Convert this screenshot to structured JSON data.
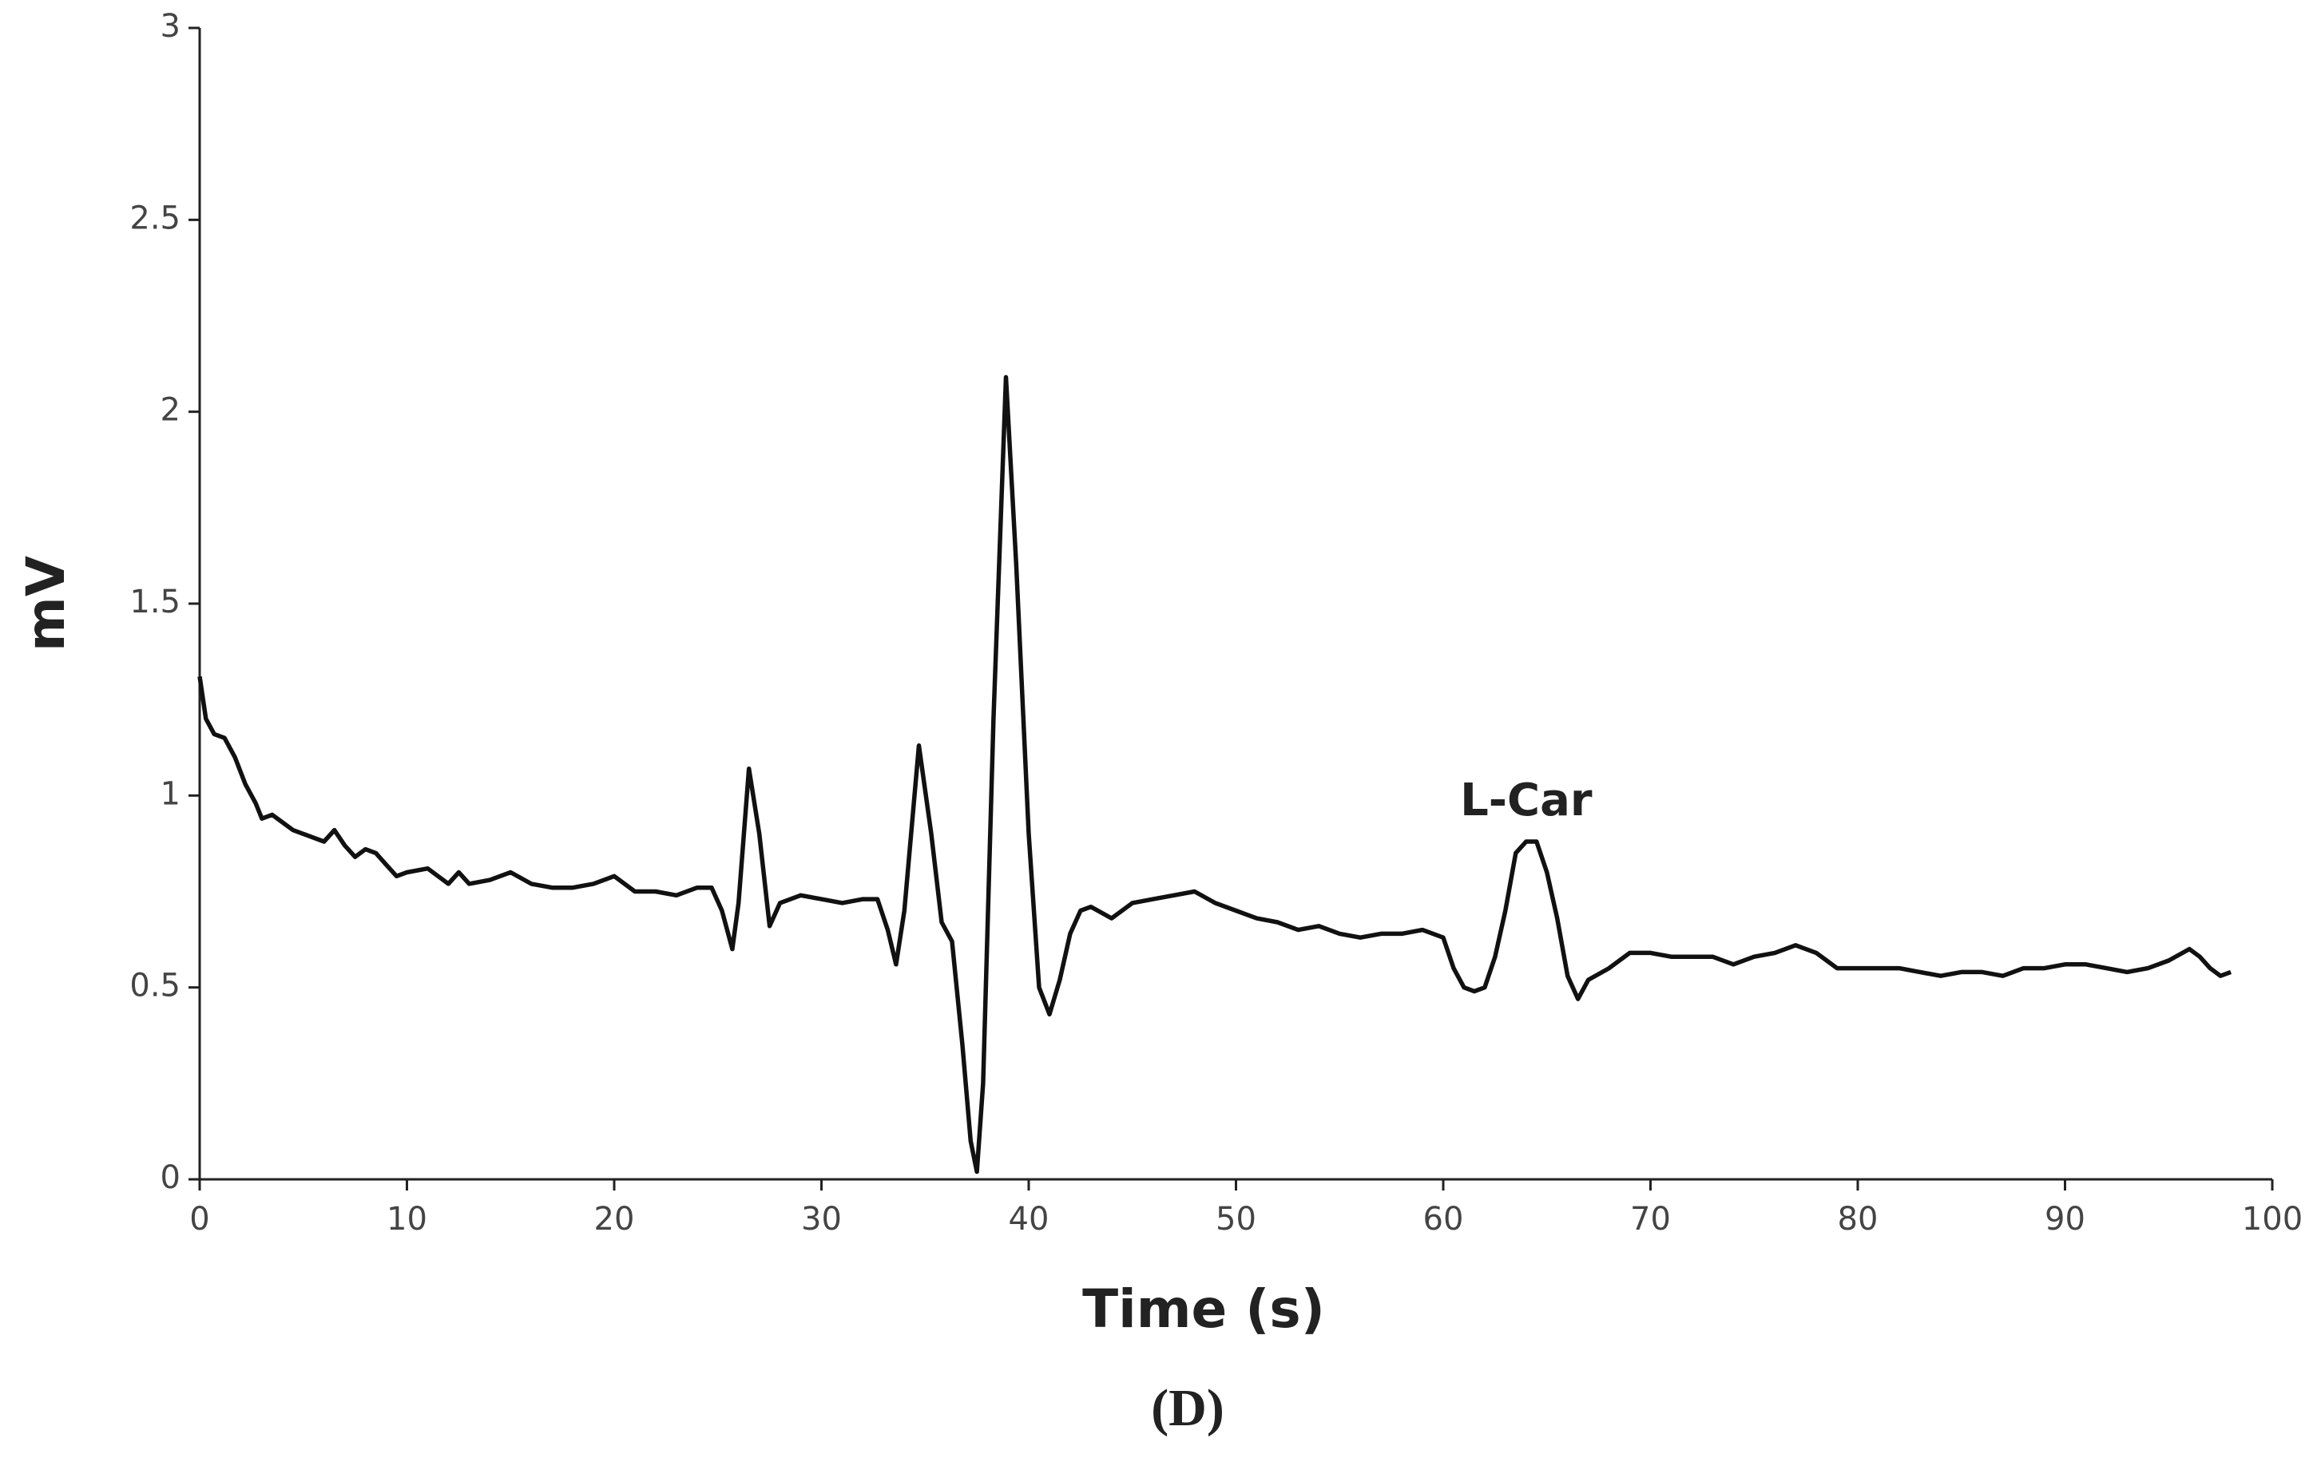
{
  "chart_data": {
    "type": "line",
    "caption": "(D)",
    "x_label": "Time (s)",
    "y_label": "mV",
    "annotations": [
      {
        "text": "L-Car",
        "x": 64,
        "y": 0.98
      }
    ],
    "xlim": [
      0,
      100
    ],
    "xticks": [
      0,
      10,
      20,
      30,
      40,
      50,
      60,
      70,
      80,
      90,
      100
    ],
    "ylim": [
      0,
      3
    ],
    "yticks": [
      0,
      0.5,
      1,
      1.5,
      2,
      2.5,
      3
    ],
    "grid": false,
    "series": [
      {
        "name": null,
        "color": "#111111",
        "x": [
          0,
          0.3,
          0.7,
          1.2,
          1.7,
          2.2,
          2.7,
          3,
          3.5,
          4,
          4.5,
          5,
          5.5,
          6,
          6.5,
          7,
          7.5,
          8,
          8.5,
          9,
          9.5,
          10,
          11,
          12,
          12.5,
          13,
          14,
          15,
          16,
          17,
          18,
          19,
          20,
          21,
          22,
          23,
          24,
          24.7,
          25.2,
          25.7,
          26,
          26.5,
          27,
          27.5,
          28,
          29,
          30,
          31,
          32,
          32.7,
          33.2,
          33.6,
          34,
          34.7,
          35.3,
          35.8,
          36.3,
          36.8,
          37.2,
          37.5,
          37.8,
          38.3,
          38.9,
          39.4,
          40,
          40.5,
          41,
          41.5,
          42,
          42.5,
          43,
          44,
          45,
          46,
          47,
          48,
          49,
          50,
          51,
          52,
          53,
          54,
          55,
          56,
          57,
          58,
          59,
          60,
          60.5,
          61,
          61.5,
          62,
          62.5,
          63,
          63.5,
          64,
          64.5,
          65,
          65.5,
          66,
          66.5,
          67,
          68,
          69,
          70,
          71,
          72,
          73,
          74,
          75,
          76,
          77,
          78,
          79,
          80,
          81,
          82,
          83,
          84,
          85,
          86,
          87,
          88,
          89,
          90,
          91,
          92,
          93,
          94,
          95,
          96,
          96.5,
          97,
          97.5,
          98
        ],
        "values": [
          1.31,
          1.2,
          1.16,
          1.15,
          1.1,
          1.03,
          0.98,
          0.94,
          0.95,
          0.93,
          0.91,
          0.9,
          0.89,
          0.88,
          0.91,
          0.87,
          0.84,
          0.86,
          0.85,
          0.82,
          0.79,
          0.8,
          0.81,
          0.77,
          0.8,
          0.77,
          0.78,
          0.8,
          0.77,
          0.76,
          0.76,
          0.77,
          0.79,
          0.75,
          0.75,
          0.74,
          0.76,
          0.76,
          0.7,
          0.6,
          0.72,
          1.07,
          0.9,
          0.66,
          0.72,
          0.74,
          0.73,
          0.72,
          0.73,
          0.73,
          0.65,
          0.56,
          0.7,
          1.13,
          0.9,
          0.67,
          0.62,
          0.35,
          0.1,
          0.02,
          0.25,
          1.2,
          2.09,
          1.6,
          0.9,
          0.5,
          0.43,
          0.52,
          0.64,
          0.7,
          0.71,
          0.68,
          0.72,
          0.73,
          0.74,
          0.75,
          0.72,
          0.7,
          0.68,
          0.67,
          0.65,
          0.66,
          0.64,
          0.63,
          0.64,
          0.64,
          0.65,
          0.63,
          0.55,
          0.5,
          0.49,
          0.5,
          0.58,
          0.7,
          0.85,
          0.88,
          0.88,
          0.8,
          0.68,
          0.53,
          0.47,
          0.52,
          0.55,
          0.59,
          0.59,
          0.58,
          0.58,
          0.58,
          0.56,
          0.58,
          0.59,
          0.61,
          0.59,
          0.55,
          0.55,
          0.55,
          0.55,
          0.54,
          0.53,
          0.54,
          0.54,
          0.53,
          0.55,
          0.55,
          0.56,
          0.56,
          0.55,
          0.54,
          0.55,
          0.57,
          0.6,
          0.58,
          0.55,
          0.53,
          0.54
        ]
      }
    ]
  }
}
